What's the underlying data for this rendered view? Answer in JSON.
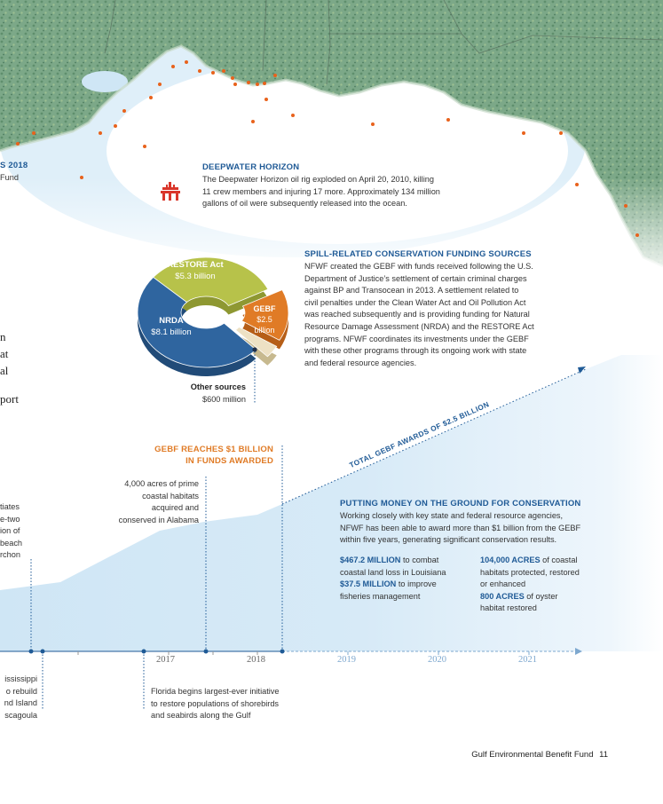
{
  "colors": {
    "navy": "#1f5a96",
    "orange": "#e07b26",
    "olive": "#b7c24a",
    "cream": "#ede1c4",
    "land_green": "#6f9f80",
    "water": "#cfe6f5",
    "dot": "#e8621c"
  },
  "top_left_label": {
    "line1": "S 2018",
    "line2": "Fund"
  },
  "deepwater": {
    "icon": "oil-rig-icon",
    "title": "DEEPWATER HORIZON",
    "line1": "The Deepwater Horizon oil rig exploded on April 20, 2010, killing",
    "line2": "11 crew members and injuring 17 more. Approximately 134 million",
    "line3": "gallons of oil were subsequently released into the ocean."
  },
  "left_cut_serif": {
    "line1": "n",
    "line2": "at",
    "line3": "al",
    "line4": "port"
  },
  "funding_sources": {
    "title": "SPILL-RELATED CONSERVATION FUNDING SOURCES",
    "lines": [
      "NFWF created the GEBF with funds received following the U.S.",
      "Department of Justice’s settlement of certain criminal charges",
      "against BP and Transocean in 2013. A settlement related to",
      "civil penalties under the Clean Water Act and Oil Pollution Act",
      "was reached subsequently and is providing funding for Natural",
      "Resource Damage Assessment (NRDA) and the RESTORE Act",
      "programs. NFWF coordinates its investments under the GEBF",
      "with these other programs through its ongoing work with state",
      "and federal resource agencies."
    ]
  },
  "chart_data": {
    "type": "pie",
    "title": "",
    "categories": [
      "RESTORE Act",
      "GEBF",
      "Other sources",
      "NRDA"
    ],
    "values": [
      5.3,
      2.5,
      0.6,
      8.1
    ],
    "value_labels": [
      "$5.3 billion",
      "$2.5 billion",
      "$600 million",
      "$8.1 billion"
    ],
    "colors": [
      "#b7c24a",
      "#e07b26",
      "#ede1c4",
      "#2f659f"
    ],
    "labels": {
      "restore_name": "RESTORE Act",
      "restore_value": "$5.3 billion",
      "gebf_name": "GEBF",
      "gebf_value_1": "$2.5",
      "gebf_value_2": "billion",
      "nrda_name": "NRDA",
      "nrda_value": "$8.1 billion",
      "other_name": "Other sources",
      "other_value": "$600 million"
    }
  },
  "total_awards_label": "TOTAL GEBF AWARDS OF $2.5 BILLION",
  "gebf_milestone": {
    "line1": "GEBF REACHES $1 BILLION",
    "line2": "IN FUNDS AWARDED"
  },
  "alabama": {
    "line1": "4,000 acres of prime",
    "line2": "coastal habitats",
    "line3": "acquired and",
    "line4": "conserved in Alabama"
  },
  "left_cut_mid": {
    "line1": "tiates",
    "line2": "e-two",
    "line3": "ion of",
    "line4": "beach",
    "line5": "rchon"
  },
  "putting_money": {
    "title": "PUTTING MONEY ON THE GROUND FOR CONSERVATION",
    "line1": "Working closely with key state and federal resource agencies,",
    "line2": "NFWF has been able to award more than $1 billion from the GEBF",
    "line3": "within five years, generating significant conservation results."
  },
  "stats": {
    "s1_value": "$467.2 MILLION",
    "s1_text_a": " to combat",
    "s1_text_b": "coastal land loss in Louisiana",
    "s2_value": "$37.5 MILLION",
    "s2_text_a": " to improve",
    "s2_text_b": "fisheries management",
    "s3_value": "104,000 ACRES",
    "s3_text_a": " of coastal",
    "s3_text_b": "habitats protected, restored",
    "s3_text_c": "or enhanced",
    "s4_value": "800 ACRES",
    "s4_text_a": " of oyster",
    "s4_text_b": "habitat restored"
  },
  "timeline": {
    "years": [
      "2017",
      "2018",
      "2019",
      "2020",
      "2021"
    ]
  },
  "left_cut_bottom": {
    "line1": "ississippi",
    "line2": "o rebuild",
    "line3": "nd Island",
    "line4": "scagoula"
  },
  "florida": {
    "line1": "Florida begins largest-ever initiative",
    "line2": "to restore populations of shorebirds",
    "line3": "and seabirds along the Gulf"
  },
  "footer": {
    "publication": "Gulf Environmental Benefit Fund",
    "page": "11"
  }
}
